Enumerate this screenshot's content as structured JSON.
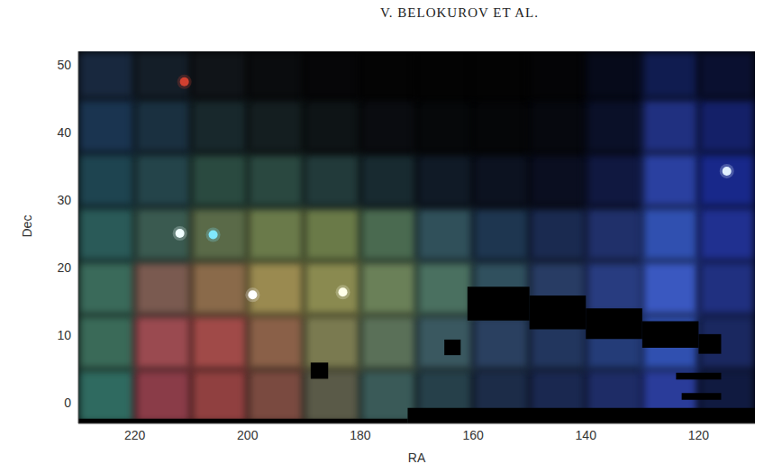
{
  "header": "V. BELOKUROV ET AL.",
  "chart_data": {
    "type": "image",
    "xlabel": "RA",
    "ylabel": "Dec",
    "xlim": [
      230,
      110
    ],
    "ylim": [
      -3,
      52
    ],
    "xticks": [
      220,
      200,
      180,
      160,
      140,
      120
    ],
    "yticks": [
      0,
      10,
      20,
      30,
      40,
      50
    ],
    "grid": false,
    "cells": {
      "ra_edges": [
        230,
        220,
        210,
        200,
        190,
        180,
        170,
        160,
        150,
        140,
        130,
        120,
        110
      ],
      "dec_edges": [
        -3,
        5,
        13,
        21,
        29,
        37,
        45,
        52
      ],
      "colors": [
        [
          "#2f6a60",
          "#8a3c48",
          "#904040",
          "#7a4a40",
          "#5a5a48",
          "#3a5a58",
          "#26404a",
          "#1c2c48",
          "#1a2850",
          "#1e2c66",
          "#2a3c9a",
          "#101a40"
        ],
        [
          "#3a6a58",
          "#9a4a50",
          "#a04a48",
          "#8a6048",
          "#7a7a50",
          "#5a7058",
          "#3a5860",
          "#2a4060",
          "#22365e",
          "#243c78",
          "#3050b0",
          "#1a2860"
        ],
        [
          "#3a6a5a",
          "#7a5a50",
          "#8a6a4a",
          "#9a8a50",
          "#8a8a50",
          "#6a8058",
          "#4a7060",
          "#30505e",
          "#283c64",
          "#283c80",
          "#3a58c0",
          "#203080"
        ],
        [
          "#2a5a58",
          "#3a5a50",
          "#5a6a48",
          "#6a7a4a",
          "#6a7a48",
          "#4a6a50",
          "#30505a",
          "#1e3650",
          "#1a2a50",
          "#20306a",
          "#3050b0",
          "#203090"
        ],
        [
          "#1e4450",
          "#24444a",
          "#2a4a40",
          "#2a4840",
          "#223a3a",
          "#182a30",
          "#101a26",
          "#0c1220",
          "#0a0e20",
          "#101840",
          "#2a40a0",
          "#18288a"
        ],
        [
          "#1a3450",
          "#1a3040",
          "#18282c",
          "#141e20",
          "#0e1416",
          "#0a0c10",
          "#06080a",
          "#050608",
          "#06080e",
          "#0a1028",
          "#203080",
          "#142068"
        ],
        [
          "#18283e",
          "#141e28",
          "#101418",
          "#0a0c0e",
          "#060608",
          "#040404",
          "#030303",
          "#030303",
          "#040406",
          "#060a1a",
          "#101c50",
          "#0a1030"
        ]
      ]
    },
    "masks": {
      "ra": [
        [
          188.8,
          185.7
        ],
        [
          165.1,
          162.2
        ],
        [
          171.6,
          110
        ],
        [
          230,
          171.6
        ],
        [
          161,
          150
        ],
        [
          150,
          140
        ],
        [
          140,
          130
        ],
        [
          130,
          120
        ],
        [
          120,
          116
        ],
        [
          124,
          116
        ],
        [
          123,
          116
        ]
      ],
      "dec": [
        [
          3.6,
          6.0
        ],
        [
          7.1,
          9.4
        ],
        [
          -3,
          -0.7
        ],
        [
          -3,
          -2.3
        ],
        [
          12.2,
          17.2
        ],
        [
          10.9,
          15.9
        ],
        [
          9.5,
          14.0
        ],
        [
          8.2,
          12.1
        ],
        [
          7.3,
          10.2
        ],
        [
          3.5,
          4.5
        ],
        [
          0.5,
          1.5
        ]
      ]
    },
    "sources": {
      "ra": [
        211.2,
        212.0,
        206.1,
        199.1,
        183.1,
        115.0
      ],
      "dec": [
        47.5,
        25.1,
        24.9,
        16.0,
        16.4,
        34.3
      ],
      "colors": [
        "#d04030",
        "#f0ffff",
        "#80e8ff",
        "#ffffff",
        "#ffffe8",
        "#e0f0ff"
      ]
    }
  }
}
